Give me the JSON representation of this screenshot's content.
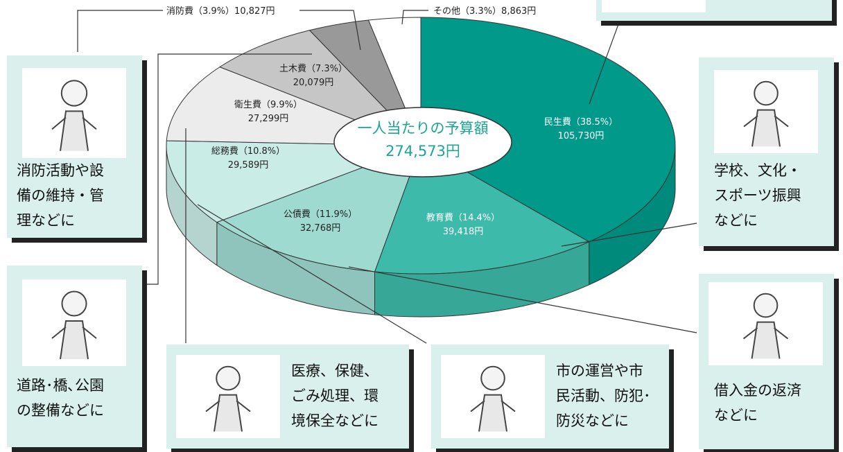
{
  "chart_data": {
    "type": "pie3d",
    "categories": [
      "民生費",
      "教育費",
      "公債費",
      "総務費",
      "衛生費",
      "土木費",
      "消防費",
      "その他"
    ],
    "values": [
      38.5,
      14.4,
      11.9,
      10.8,
      9.9,
      7.3,
      3.9,
      3.3
    ],
    "value_labels": [
      "（38.5%）",
      "（14.4%）",
      "（11.9%）",
      "（10.8%）",
      "（9.9%）",
      "（7.3%）",
      "（3.9%）",
      "（3.3%）"
    ],
    "amounts": [
      105730,
      39418,
      32768,
      29589,
      27299,
      20079,
      10827,
      8863
    ],
    "amount_labels": [
      "105,730円",
      "39,418円",
      "32,768円",
      "29,589円",
      "27,299円",
      "20,079円",
      "10,827円",
      "8,863円"
    ],
    "colors": [
      "#00998a",
      "#3dbaa9",
      "#9fdad1",
      "#c9ece6",
      "#ececec",
      "#c6c6c6",
      "#999999",
      "#ffffff"
    ],
    "center_label": "一人当たりの予算額",
    "center_value": "274,573円"
  },
  "callouts": [
    {
      "lines": [
        "消防活動や設",
        "備の維持・管",
        "理などに"
      ]
    },
    {
      "lines": [
        "道路･橋､公園",
        "の整備などに"
      ]
    },
    {
      "lines": [
        "医療、保健、",
        "ごみ処理、環",
        "境保全などに"
      ]
    },
    {
      "lines": [
        "市の運営や市",
        "民活動、防犯･",
        "防災などに"
      ]
    },
    {
      "lines": [
        "学校、文化・",
        "スポーツ振興",
        "などに"
      ]
    },
    {
      "lines": [
        "借入金の返済",
        "などに"
      ]
    }
  ]
}
